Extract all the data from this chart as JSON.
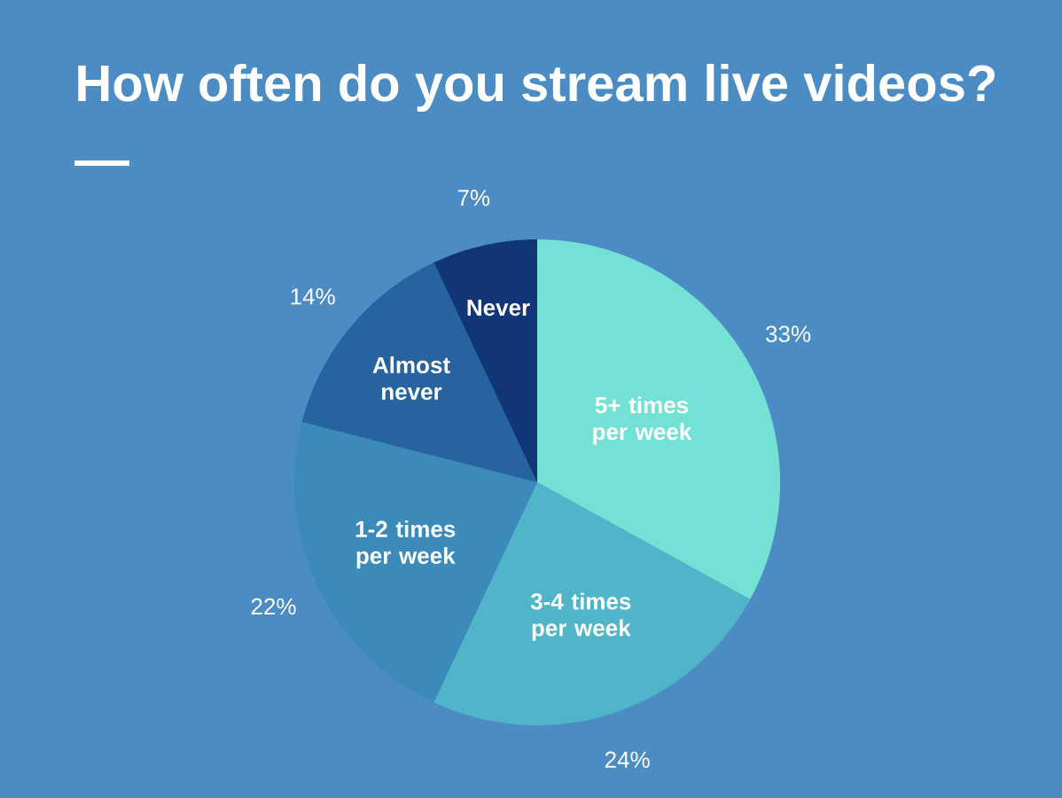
{
  "chart_data": {
    "type": "pie",
    "title": "How often do you stream live videos?",
    "categories": [
      "5+ times per week",
      "3-4 times per week",
      "1-2 times per week",
      "Almost never",
      "Never"
    ],
    "values": [
      33,
      24,
      22,
      14,
      7
    ],
    "colors": [
      "#73e1d3",
      "#51b5c9",
      "#3b8aba",
      "#27639e",
      "#113677"
    ],
    "value_labels": [
      "33%",
      "24%",
      "22%",
      "14%",
      "7%"
    ]
  }
}
